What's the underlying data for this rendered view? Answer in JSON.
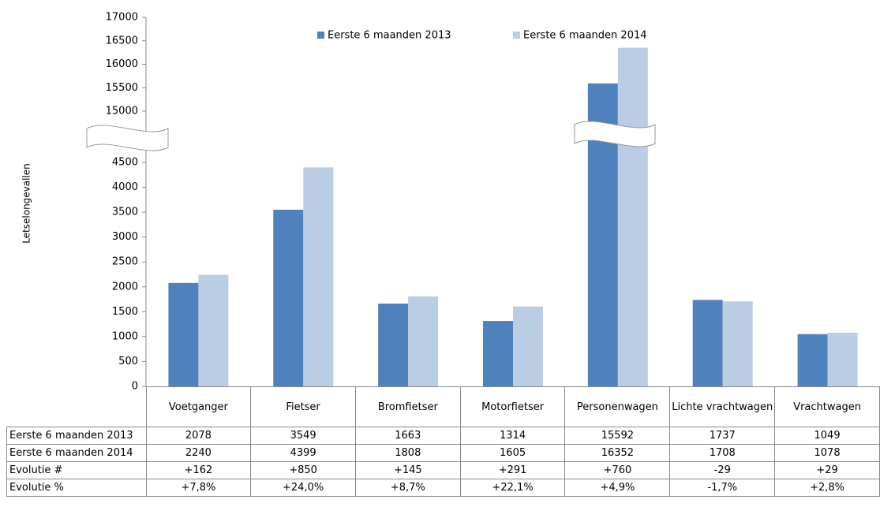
{
  "chart_data": {
    "type": "bar",
    "y_label": "Letselongevallen",
    "categories": [
      "Voetganger",
      "Fietser",
      "Bromfietser",
      "Motorfietser",
      "Personenwagen",
      "Lichte vrachtwagen",
      "Vrachtwagen"
    ],
    "series": [
      {
        "name": "Eerste 6 maanden 2013",
        "color": "#4f81bd",
        "values": [
          2078,
          3549,
          1663,
          1314,
          15592,
          1737,
          1049
        ]
      },
      {
        "name": "Eerste 6 maanden 2014",
        "color": "#b9cde5",
        "values": [
          2240,
          4399,
          1808,
          1605,
          16352,
          1708,
          1078
        ]
      }
    ],
    "ylim": [
      0,
      17000
    ],
    "ybreak": [
      4500,
      15000
    ],
    "yticks": [
      0,
      500,
      1000,
      1500,
      2000,
      2500,
      3000,
      3500,
      4000,
      4500,
      15000,
      15500,
      16000,
      16500,
      17000
    ],
    "legend": "top",
    "grid": false
  },
  "table": {
    "rows": [
      {
        "label": "Evolutie #",
        "cells": [
          "+162",
          "+850",
          "+145",
          "+291",
          "+760",
          "-29",
          "+29"
        ]
      },
      {
        "label": "Evolutie %",
        "cells": [
          "+7,8%",
          "+24,0%",
          "+8,7%",
          "+22,1%",
          "+4,9%",
          "-1,7%",
          "+2,8%"
        ]
      }
    ]
  }
}
